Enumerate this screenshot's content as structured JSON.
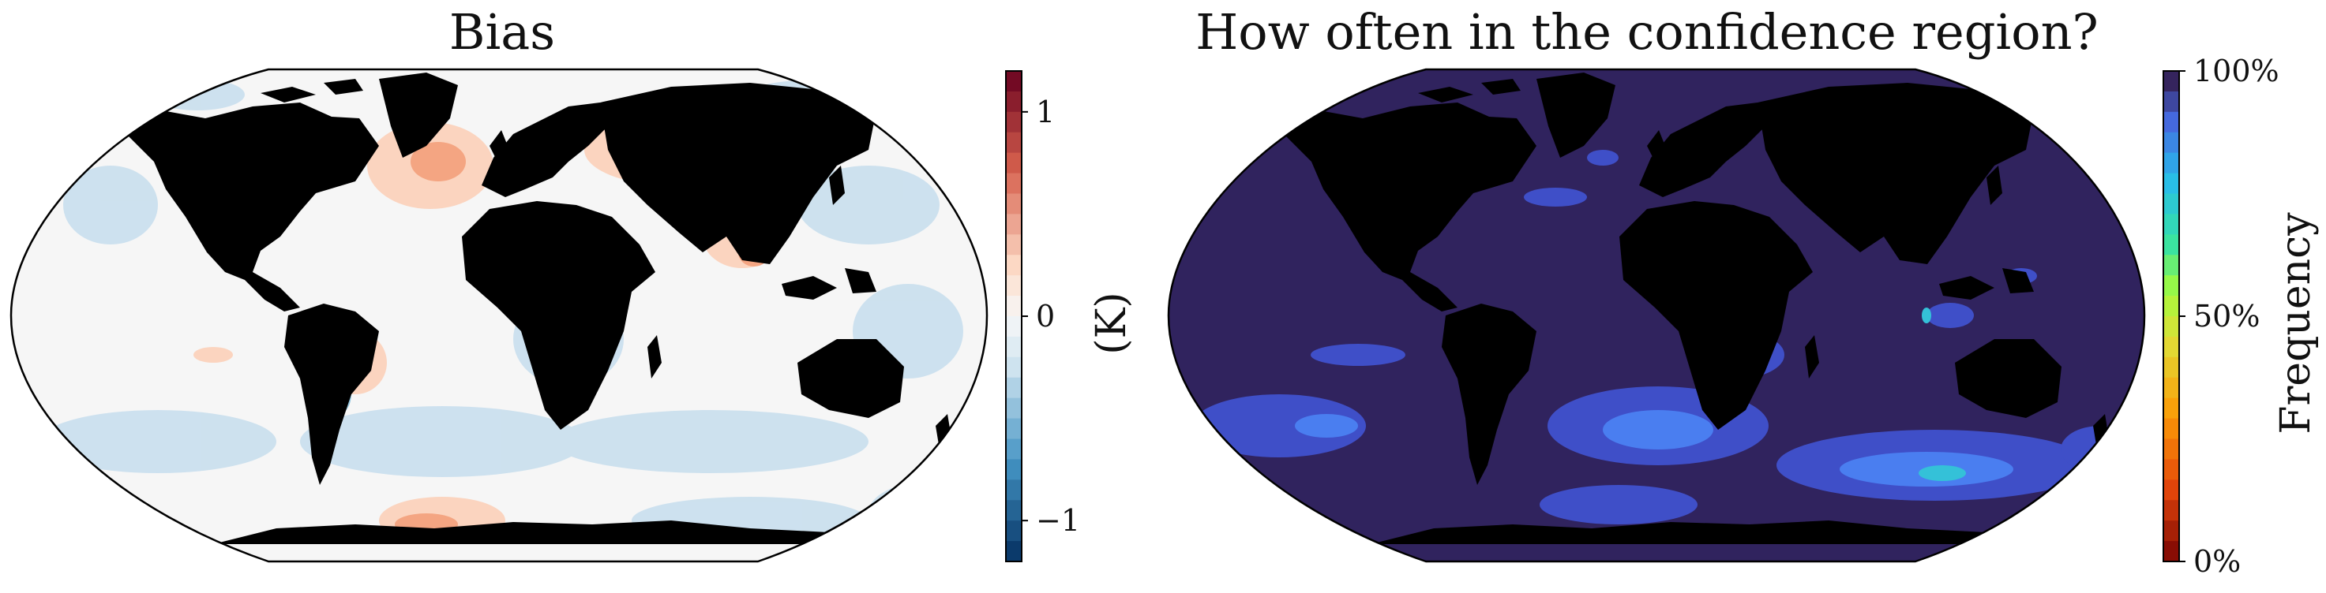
{
  "panels": [
    {
      "title": "Bias",
      "colorbar": {
        "label": "(K)",
        "ticks": [
          {
            "value": 1,
            "text": "1"
          },
          {
            "value": 0,
            "text": "0"
          },
          {
            "value": -1,
            "text": "−1"
          }
        ],
        "range": [
          -1.2,
          1.2
        ],
        "colormap": "RdBu_r"
      }
    },
    {
      "title": "How often in the confidence region?",
      "colorbar": {
        "label": "Frequency",
        "ticks": [
          {
            "value": 100,
            "text": "100%"
          },
          {
            "value": 50,
            "text": "50%"
          },
          {
            "value": 0,
            "text": "0%"
          }
        ],
        "range": [
          0,
          100
        ],
        "colormap": "turbo_r"
      }
    }
  ],
  "colors": {
    "bias_background": "#f6f6f6",
    "bias_warm": "#f4a582",
    "bias_warm_strong": "#d6604d",
    "bias_cool": "#c9dfee",
    "bias_cool_strong": "#6aa6cf",
    "freq_background": "#30235e",
    "freq_mid": "#3f4fc8",
    "freq_high": "#4a7ef0",
    "freq_peak": "#34c1d8"
  }
}
